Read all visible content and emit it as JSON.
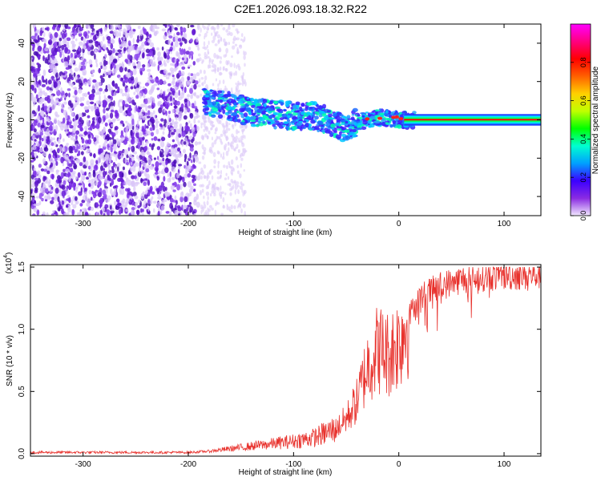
{
  "figure": {
    "title": "C2E1.2026.093.18.32.R22"
  },
  "chart_data": [
    {
      "type": "heatmap",
      "title": "C2E1.2026.093.18.32.R22",
      "xlabel": "Height of straight line (km)",
      "ylabel": "Frequency (Hz)",
      "xlim": [
        -350,
        135
      ],
      "ylim": [
        -50,
        50
      ],
      "x_ticks": [
        -300,
        -200,
        -100,
        0,
        100
      ],
      "x_tick_labels": [
        "-300",
        "-200",
        "-100",
        "0",
        "100"
      ],
      "y_ticks": [
        -40,
        -20,
        0,
        20,
        40
      ],
      "y_tick_labels": [
        "-40",
        "-20",
        "0",
        "20",
        "40"
      ],
      "ridge": {
        "x": [
          -180,
          -160,
          -140,
          -120,
          -100,
          -80,
          -60,
          -50,
          -40,
          -30,
          -20,
          -10,
          0,
          10,
          135
        ],
        "y": [
          9,
          7,
          4,
          3,
          2,
          2,
          -2,
          -5,
          -1,
          0,
          1,
          1,
          0,
          0,
          0
        ]
      },
      "colorbar": {
        "label": "Normalized spectral amplitude",
        "range": [
          0,
          1
        ],
        "ticks": [
          0.0,
          0.2,
          0.4,
          0.6,
          0.8
        ],
        "tick_labels": [
          "0.0",
          "0.2",
          "0.4",
          "0.6",
          "0.8"
        ],
        "colors": [
          "#f2e8ff",
          "#8a2be2",
          "#3b00ff",
          "#00a0ff",
          "#00ffd0",
          "#00ff00",
          "#c0ff00",
          "#ffd000",
          "#ff6000",
          "#ff0000",
          "#ff0080",
          "#ff00ff"
        ]
      },
      "grid": false
    },
    {
      "type": "line",
      "xlabel": "Height of straight line (km)",
      "ylabel": "SNR (10 * v/v)",
      "y_multiplier": "(x10",
      "y_multiplier_exp": "4",
      "xlim": [
        -350,
        135
      ],
      "ylim": [
        -0.02,
        1.52
      ],
      "x_ticks": [
        -300,
        -200,
        -100,
        0,
        100
      ],
      "x_tick_labels": [
        "-300",
        "-200",
        "-100",
        "0",
        "100"
      ],
      "y_ticks": [
        0.0,
        0.5,
        1.0,
        1.5
      ],
      "y_tick_labels": [
        "0.0",
        "0.5",
        "1.0",
        "1.5"
      ],
      "line_color": "#e8322d",
      "series": [
        {
          "name": "SNR",
          "x": [
            -350,
            -300,
            -250,
            -200,
            -180,
            -160,
            -140,
            -120,
            -100,
            -80,
            -60,
            -50,
            -40,
            -30,
            -20,
            -10,
            0,
            10,
            20,
            40,
            60,
            80,
            100,
            120,
            135
          ],
          "y": [
            0.01,
            0.01,
            0.01,
            0.01,
            0.02,
            0.04,
            0.06,
            0.08,
            0.1,
            0.13,
            0.2,
            0.28,
            0.42,
            0.7,
            0.85,
            0.8,
            0.9,
            1.1,
            1.25,
            1.35,
            1.4,
            1.42,
            1.43,
            1.43,
            1.44
          ]
        }
      ],
      "grid": false
    }
  ]
}
